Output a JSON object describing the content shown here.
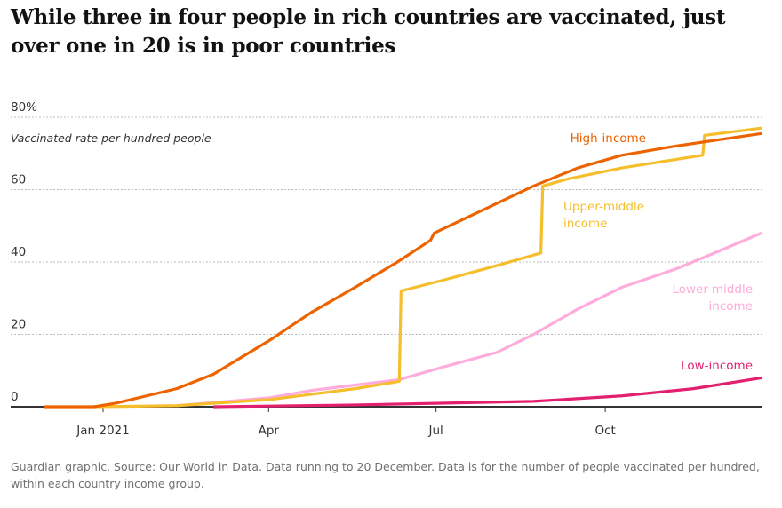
{
  "title": "While three in four people in rich countries are vaccinated, just over one in 20 is in poor countries",
  "footer": "Guardian graphic. Source: Our World in Data. Data running to 20 December. Data is for the number of people vaccinated per hundred, within each country income group.",
  "chart_data": {
    "type": "line",
    "ylabel": "Vaccinated rate per hundred people",
    "ylim": [
      0,
      80
    ],
    "yticks": [
      {
        "v": 0,
        "label": "0"
      },
      {
        "v": 20,
        "label": "20"
      },
      {
        "v": 40,
        "label": "40"
      },
      {
        "v": 60,
        "label": "60"
      },
      {
        "v": 80,
        "label": "80%"
      }
    ],
    "x_unit": "days since 1 Jan 2021",
    "xlim": [
      -32,
      358
    ],
    "xticks": [
      {
        "v": 0,
        "label": "Jan 2021"
      },
      {
        "v": 90,
        "label": "Apr"
      },
      {
        "v": 181,
        "label": "Jul"
      },
      {
        "v": 273,
        "label": "Oct"
      }
    ],
    "grid": true,
    "series": [
      {
        "name": "High-income",
        "label": [
          "High-income"
        ],
        "color": "#ed6300",
        "points": [
          [
            -32,
            0
          ],
          [
            -5,
            0
          ],
          [
            7,
            1
          ],
          [
            40,
            5
          ],
          [
            60,
            9
          ],
          [
            91,
            18.5
          ],
          [
            113,
            26
          ],
          [
            137,
            33
          ],
          [
            160,
            40
          ],
          [
            178,
            46
          ],
          [
            180,
            48
          ],
          [
            205,
            54
          ],
          [
            234,
            61
          ],
          [
            258,
            66
          ],
          [
            282,
            69.5
          ],
          [
            311,
            72
          ],
          [
            358,
            75.5
          ]
        ]
      },
      {
        "name": "Upper-middle income",
        "label": [
          "Upper-middle",
          "income"
        ],
        "color": "#f5be2c",
        "points": [
          [
            -5,
            0
          ],
          [
            40,
            0.3
          ],
          [
            91,
            2
          ],
          [
            137,
            5
          ],
          [
            161,
            7
          ],
          [
            162,
            32
          ],
          [
            185,
            35
          ],
          [
            214,
            39
          ],
          [
            238,
            42.5
          ],
          [
            239,
            61
          ],
          [
            253,
            63
          ],
          [
            282,
            66
          ],
          [
            326,
            69.5
          ],
          [
            327,
            75
          ],
          [
            358,
            77
          ]
        ]
      },
      {
        "name": "Lower-middle income",
        "label": [
          "Lower-middle",
          "income"
        ],
        "color": "#ffabdb",
        "points": [
          [
            40,
            0.3
          ],
          [
            91,
            2.5
          ],
          [
            113,
            4.5
          ],
          [
            161,
            7.5
          ],
          [
            185,
            11
          ],
          [
            214,
            15
          ],
          [
            234,
            20
          ],
          [
            258,
            27
          ],
          [
            282,
            33
          ],
          [
            311,
            38
          ],
          [
            330,
            42
          ],
          [
            358,
            48
          ]
        ]
      },
      {
        "name": "Low-income",
        "label": [
          "Low-income"
        ],
        "color": "#e31f70",
        "points": [
          [
            60,
            0
          ],
          [
            137,
            0.5
          ],
          [
            234,
            1.5
          ],
          [
            282,
            3
          ],
          [
            321,
            5
          ],
          [
            358,
            8
          ]
        ]
      }
    ]
  }
}
